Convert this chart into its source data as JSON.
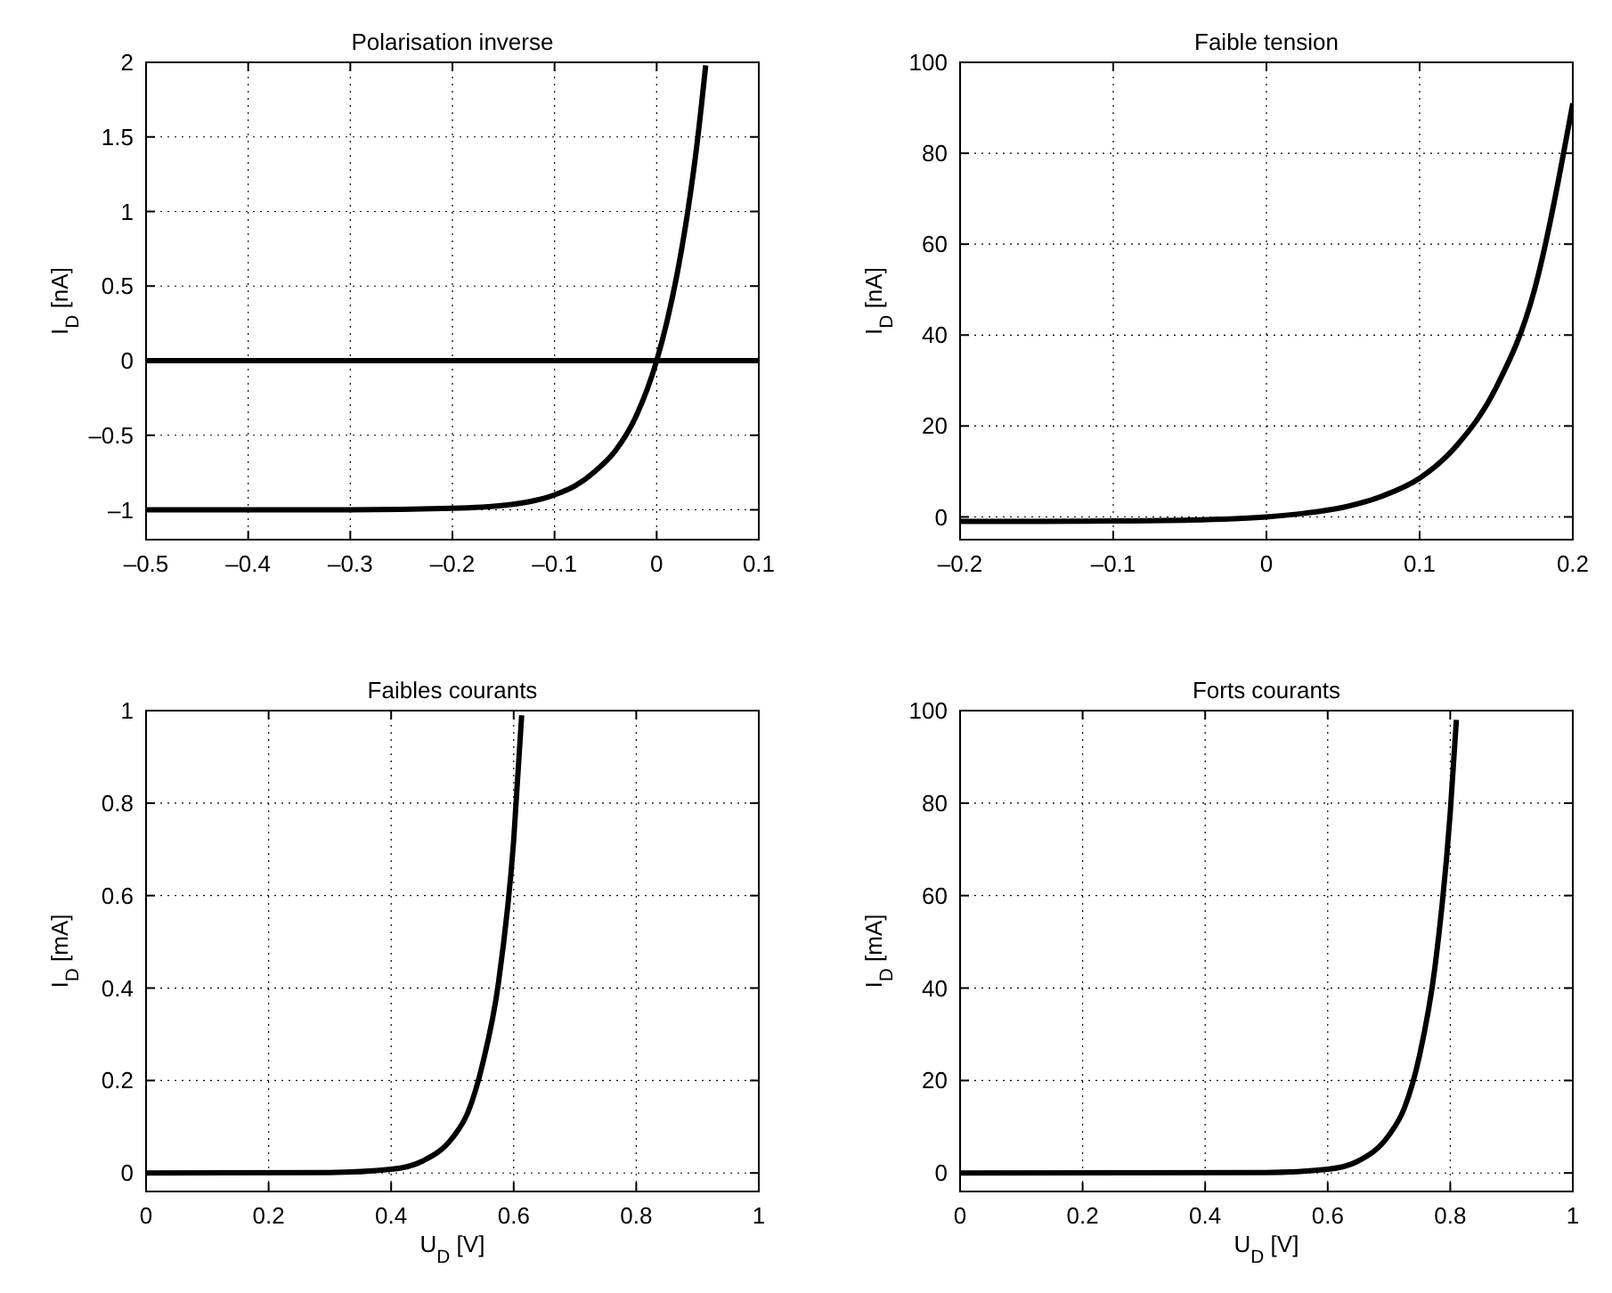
{
  "chart_data": [
    {
      "type": "line",
      "title": "Polarisation inverse",
      "ylabel": "I$_{D}$ [nA]",
      "xlim": [
        -0.5,
        0.1
      ],
      "ylim": [
        -1.2,
        2
      ],
      "xticks": [
        {
          "value": -0.5,
          "label": "–0.5"
        },
        {
          "value": -0.4,
          "label": "–0.4"
        },
        {
          "value": -0.3,
          "label": "–0.3"
        },
        {
          "value": -0.2,
          "label": "–0.2"
        },
        {
          "value": -0.1,
          "label": "–0.1"
        },
        0,
        0.1
      ],
      "yticks": [
        {
          "value": -1,
          "label": "–1"
        },
        {
          "value": -0.5,
          "label": "–0.5"
        },
        0,
        0.5,
        1,
        1.5,
        2
      ],
      "grid": true,
      "line_style": "solid",
      "ref_lines": [
        {
          "axis": "y",
          "value": 0,
          "color": "#000000"
        }
      ],
      "series": [
        {
          "color": "#000000",
          "x": [
            -0.5,
            -0.4,
            -0.3,
            -0.2,
            -0.15,
            -0.1,
            -0.08,
            -0.06,
            -0.04,
            -0.02,
            0,
            0.01,
            0.02,
            0.03,
            0.04,
            0.048
          ],
          "values": [
            -1,
            -1,
            -1,
            -0.99,
            -0.97,
            -0.9,
            -0.84,
            -0.74,
            -0.6,
            -0.37,
            0,
            0.26,
            0.58,
            0.98,
            1.48,
            1.98
          ]
        }
      ]
    },
    {
      "type": "line",
      "title": "Faible tension",
      "ylabel": "I$_{D}$ [nA]",
      "xlim": [
        -0.2,
        0.2
      ],
      "ylim": [
        -5,
        100
      ],
      "xticks": [
        {
          "value": -0.2,
          "label": "–0.2"
        },
        {
          "value": -0.1,
          "label": "–0.1"
        },
        0,
        0.1,
        0.2
      ],
      "yticks": [
        0,
        20,
        40,
        60,
        80,
        100
      ],
      "grid": true,
      "line_style": "solid",
      "series": [
        {
          "color": "#000000",
          "x": [
            -0.2,
            -0.15,
            -0.1,
            -0.05,
            0,
            0.025,
            0.05,
            0.075,
            0.1,
            0.125,
            0.15,
            0.175,
            0.2
          ],
          "values": [
            -1,
            -1,
            -0.9,
            -0.7,
            0,
            0.8,
            2.1,
            4.5,
            8.5,
            16,
            28.5,
            50,
            91
          ]
        }
      ]
    },
    {
      "type": "line",
      "title": "Faibles courants",
      "xlabel": "U$_{D}$ [V]",
      "ylabel": "I$_{D}$ [mA]",
      "xlim": [
        0,
        1
      ],
      "ylim": [
        -0.04,
        1
      ],
      "xticks": [
        0,
        0.2,
        0.4,
        0.6,
        0.8,
        1
      ],
      "yticks": [
        0,
        0.2,
        0.4,
        0.6,
        0.8,
        1
      ],
      "grid": true,
      "line_style": "solid",
      "series": [
        {
          "color": "#000000",
          "x": [
            0,
            0.3,
            0.4,
            0.45,
            0.5,
            0.525,
            0.55,
            0.575,
            0.6,
            0.613
          ],
          "values": [
            0,
            0.001,
            0.008,
            0.025,
            0.076,
            0.13,
            0.24,
            0.41,
            0.72,
            0.99
          ]
        }
      ]
    },
    {
      "type": "line",
      "title": "Forts courants",
      "xlabel": "U$_{D}$ [V]",
      "ylabel": "I$_{D}$ [mA]",
      "xlim": [
        0,
        1
      ],
      "ylim": [
        -4,
        100
      ],
      "xticks": [
        0,
        0.2,
        0.4,
        0.6,
        0.8,
        1
      ],
      "yticks": [
        0,
        20,
        40,
        60,
        80,
        100
      ],
      "grid": true,
      "line_style": "solid",
      "series": [
        {
          "color": "#000000",
          "x": [
            0,
            0.5,
            0.6,
            0.65,
            0.7,
            0.725,
            0.75,
            0.775,
            0.8,
            0.81
          ],
          "values": [
            0,
            0.1,
            0.8,
            2.6,
            8.2,
            14,
            25.5,
            44.5,
            78,
            98
          ]
        }
      ]
    }
  ]
}
